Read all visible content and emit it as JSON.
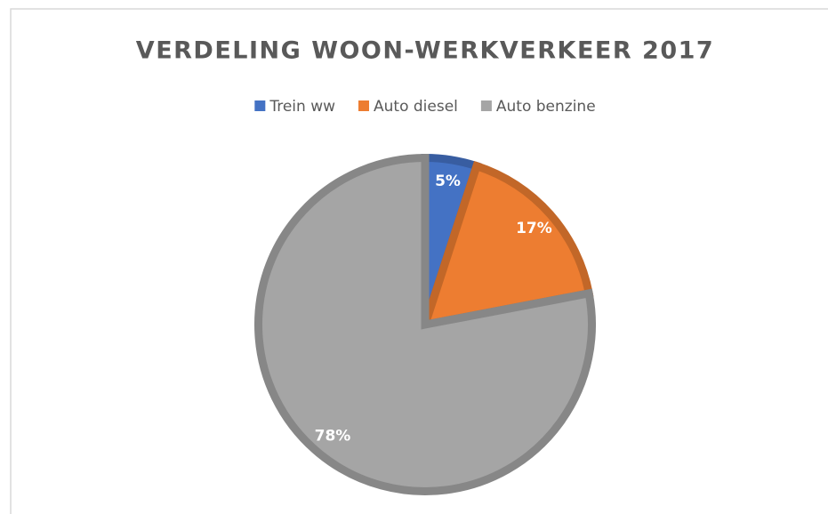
{
  "chart_data": {
    "type": "pie",
    "title": "VERDELING WOON-WERKVERKEER 2017",
    "categories": [
      "Trein ww",
      "Auto diesel",
      "Auto benzine"
    ],
    "values": [
      5,
      17,
      78
    ],
    "value_labels": [
      "5%",
      "17%",
      "78%"
    ],
    "colors": [
      "#4472c4",
      "#ed7d31",
      "#a5a5a5"
    ],
    "legend": "top"
  }
}
